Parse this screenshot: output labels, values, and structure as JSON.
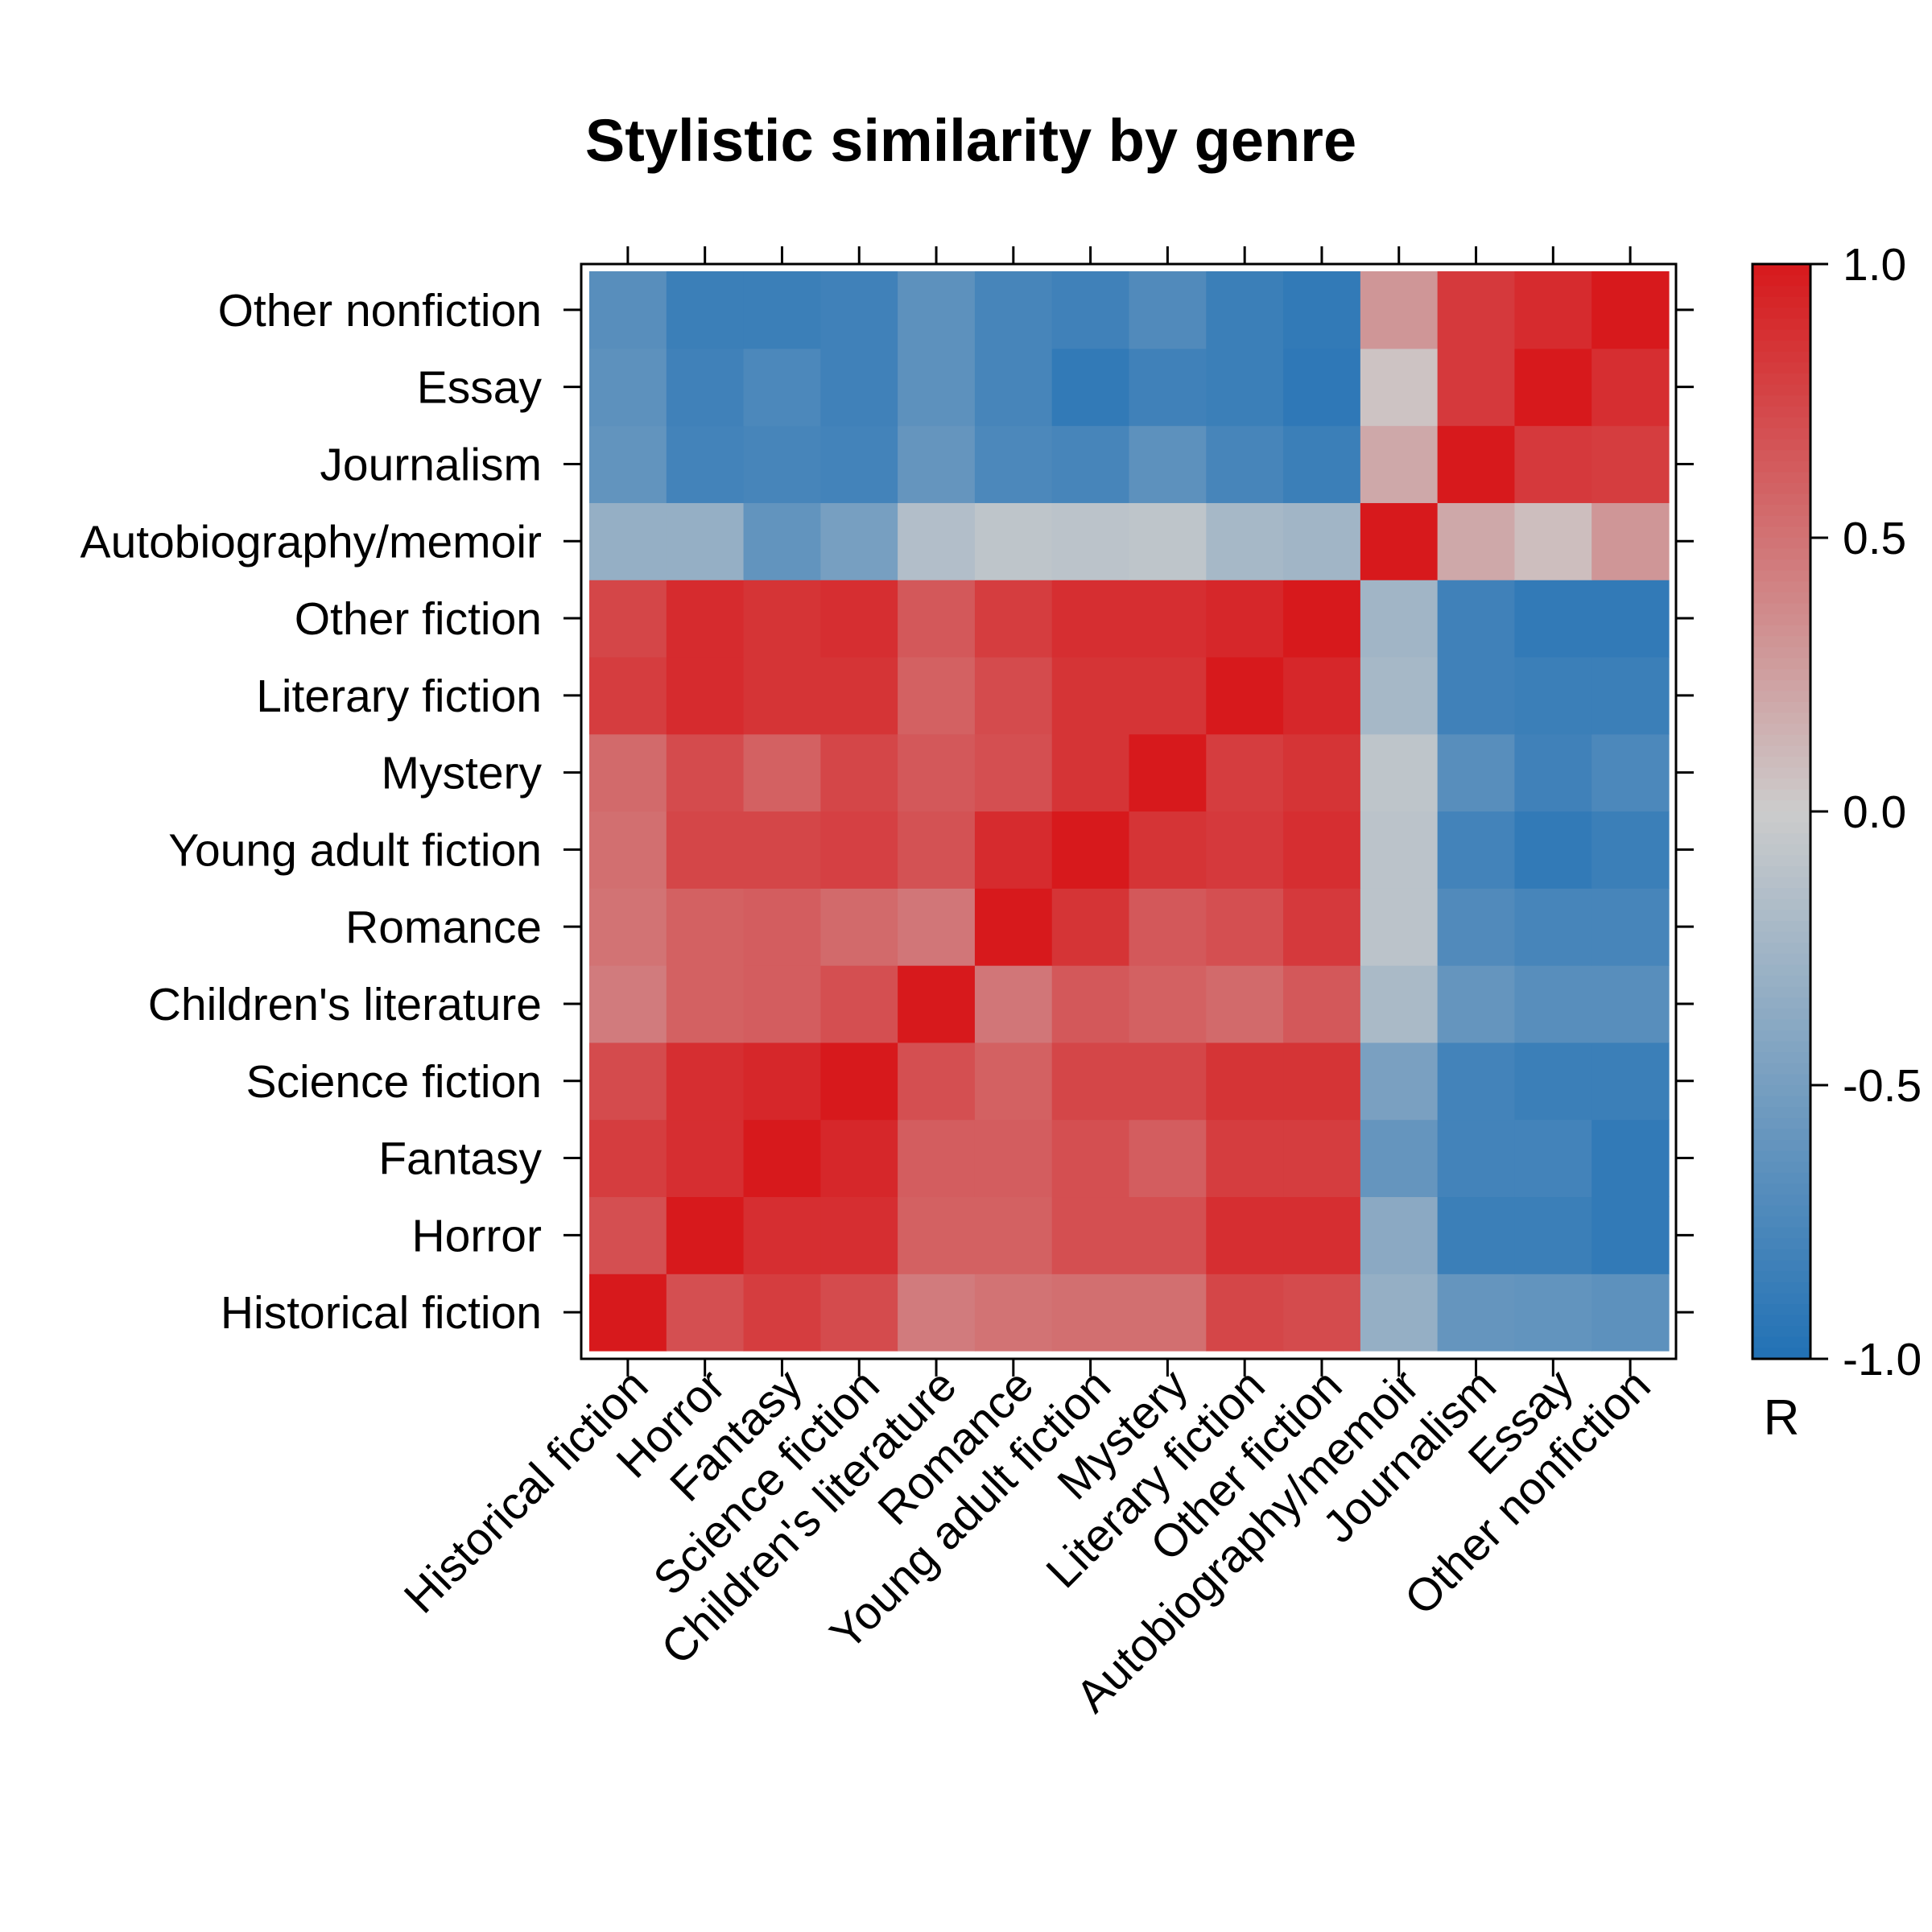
{
  "chart_data": {
    "type": "heatmap",
    "title": "Stylistic similarity by genre",
    "xlabel": "",
    "ylabel": "",
    "grid": false,
    "legend": "right",
    "categories": [
      "Historical fiction",
      "Horror",
      "Fantasy",
      "Science fiction",
      "Children's literature",
      "Romance",
      "Young adult fiction",
      "Mystery",
      "Literary fiction",
      "Other fiction",
      "Autobiography/memoir",
      "Journalism",
      "Essay",
      "Other nonfiction"
    ],
    "values": [
      [
        1.0,
        0.7,
        0.8,
        0.72,
        0.45,
        0.5,
        0.52,
        0.52,
        0.75,
        0.72,
        -0.32,
        -0.6,
        -0.62,
        -0.65
      ],
      [
        0.7,
        1.0,
        0.88,
        0.88,
        0.6,
        0.6,
        0.7,
        0.7,
        0.88,
        0.88,
        -0.38,
        -0.85,
        -0.85,
        -0.9
      ],
      [
        0.8,
        0.88,
        1.0,
        0.92,
        0.62,
        0.62,
        0.7,
        0.62,
        0.8,
        0.8,
        -0.6,
        -0.8,
        -0.8,
        -0.9
      ],
      [
        0.72,
        0.88,
        0.92,
        1.0,
        0.7,
        0.6,
        0.75,
        0.75,
        0.85,
        0.85,
        -0.48,
        -0.8,
        -0.85,
        -0.85
      ],
      [
        0.45,
        0.6,
        0.62,
        0.7,
        1.0,
        0.48,
        0.65,
        0.6,
        0.55,
        0.65,
        -0.2,
        -0.6,
        -0.68,
        -0.68
      ],
      [
        0.5,
        0.6,
        0.62,
        0.55,
        0.48,
        1.0,
        0.85,
        0.65,
        0.7,
        0.82,
        -0.1,
        -0.72,
        -0.78,
        -0.78
      ],
      [
        0.52,
        0.75,
        0.75,
        0.78,
        0.68,
        0.9,
        1.0,
        0.85,
        0.82,
        0.88,
        -0.1,
        -0.8,
        -0.9,
        -0.85
      ],
      [
        0.55,
        0.72,
        0.6,
        0.75,
        0.65,
        0.7,
        0.85,
        1.0,
        0.8,
        0.85,
        -0.08,
        -0.68,
        -0.82,
        -0.75
      ],
      [
        0.8,
        0.9,
        0.85,
        0.85,
        0.6,
        0.72,
        0.85,
        0.85,
        1.0,
        0.92,
        -0.22,
        -0.82,
        -0.85,
        -0.85
      ],
      [
        0.75,
        0.9,
        0.85,
        0.88,
        0.65,
        0.8,
        0.88,
        0.88,
        0.92,
        1.0,
        -0.25,
        -0.82,
        -0.9,
        -0.9
      ],
      [
        -0.32,
        -0.32,
        -0.62,
        -0.5,
        -0.15,
        -0.08,
        -0.1,
        -0.08,
        -0.22,
        -0.25,
        1.0,
        0.2,
        0.08,
        0.3
      ],
      [
        -0.62,
        -0.8,
        -0.78,
        -0.8,
        -0.6,
        -0.75,
        -0.78,
        -0.65,
        -0.78,
        -0.85,
        0.2,
        1.0,
        0.82,
        0.8
      ],
      [
        -0.65,
        -0.82,
        -0.75,
        -0.82,
        -0.65,
        -0.78,
        -0.9,
        -0.82,
        -0.85,
        -0.92,
        0.05,
        0.82,
        1.0,
        0.88
      ],
      [
        -0.68,
        -0.85,
        -0.85,
        -0.82,
        -0.65,
        -0.78,
        -0.82,
        -0.72,
        -0.85,
        -0.9,
        0.3,
        0.82,
        0.9,
        1.0
      ]
    ],
    "colorscale": {
      "min": -1.0,
      "max": 1.0,
      "low_color": "#2171b5",
      "mid_color": "#cccccc",
      "high_color": "#d7191c",
      "title": "R",
      "ticks": [
        -1.0,
        -0.5,
        0.0,
        0.5,
        1.0
      ],
      "tick_labels": [
        "-1.0",
        "-0.5",
        "0.0",
        "0.5",
        "1.0"
      ]
    }
  }
}
